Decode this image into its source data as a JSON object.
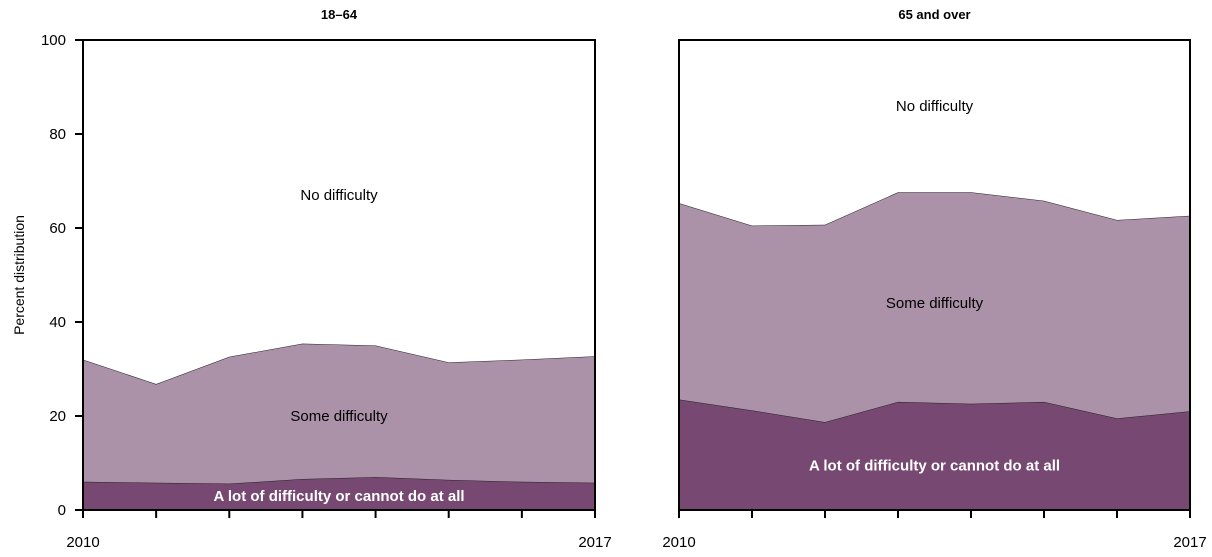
{
  "chart_data": [
    {
      "type": "area",
      "title": "18–64",
      "ylabel": "Percent distribution",
      "xlabel": "",
      "x": [
        2010,
        2011,
        2012,
        2013,
        2014,
        2015,
        2016,
        2017
      ],
      "x_tick_labels": [
        "2010",
        "",
        "",
        "",
        "",
        "",
        "",
        "2017"
      ],
      "ylim": [
        0,
        100
      ],
      "y_ticks": [
        0,
        20,
        40,
        60,
        80,
        100
      ],
      "stacked": true,
      "grid": false,
      "legend": "none (labels inside areas)",
      "series": [
        {
          "name": "A lot of difficulty or cannot do at all",
          "values": [
            6.0,
            5.8,
            5.6,
            6.6,
            7.0,
            6.4,
            6.0,
            5.8
          ],
          "color": "#774871"
        },
        {
          "name": "Some difficulty",
          "values": [
            26.0,
            21.0,
            27.0,
            28.8,
            28.0,
            25.0,
            26.0,
            26.9
          ],
          "color": "#ab92a8"
        },
        {
          "name": "No difficulty",
          "values": [
            68.0,
            73.2,
            67.4,
            64.6,
            65.0,
            68.6,
            68.0,
            67.3
          ],
          "color": "#ffffff"
        }
      ],
      "annotations": [
        {
          "text": "No difficulty",
          "series": "No difficulty",
          "at_year": 2013.5,
          "at_value": 67
        },
        {
          "text": "Some difficulty",
          "series": "Some difficulty",
          "at_year": 2013.5,
          "at_value": 20
        },
        {
          "text": "A lot of difficulty or cannot do at all",
          "series": "A lot of difficulty or cannot do at all",
          "at_year": 2013.5,
          "at_value": 3
        }
      ]
    },
    {
      "type": "area",
      "title": "65 and over",
      "ylabel": "",
      "xlabel": "",
      "x": [
        2010,
        2011,
        2012,
        2013,
        2014,
        2015,
        2016,
        2017
      ],
      "x_tick_labels": [
        "2010",
        "",
        "",
        "",
        "",
        "",
        "",
        "2017"
      ],
      "ylim": [
        0,
        100
      ],
      "y_ticks": [],
      "stacked": true,
      "grid": false,
      "legend": "none (labels inside areas)",
      "series": [
        {
          "name": "A lot of difficulty or cannot do at all",
          "values": [
            23.5,
            21.2,
            18.7,
            23.0,
            22.6,
            23.0,
            19.5,
            21.0
          ],
          "color": "#774871"
        },
        {
          "name": "Some difficulty",
          "values": [
            41.8,
            39.3,
            42.0,
            44.6,
            45.0,
            42.8,
            42.2,
            41.6
          ],
          "color": "#ab92a8"
        },
        {
          "name": "No difficulty",
          "values": [
            34.7,
            39.5,
            39.3,
            32.4,
            32.4,
            34.2,
            38.3,
            37.4
          ],
          "color": "#ffffff"
        }
      ],
      "annotations": [
        {
          "text": "No difficulty",
          "series": "No difficulty",
          "at_year": 2013.5,
          "at_value": 86
        },
        {
          "text": "Some difficulty",
          "series": "Some difficulty",
          "at_year": 2013.5,
          "at_value": 44
        },
        {
          "text": "A lot of difficulty or cannot do at all",
          "series": "A lot of difficulty or cannot do at all",
          "at_year": 2013.5,
          "at_value": 9.5
        }
      ]
    }
  ]
}
